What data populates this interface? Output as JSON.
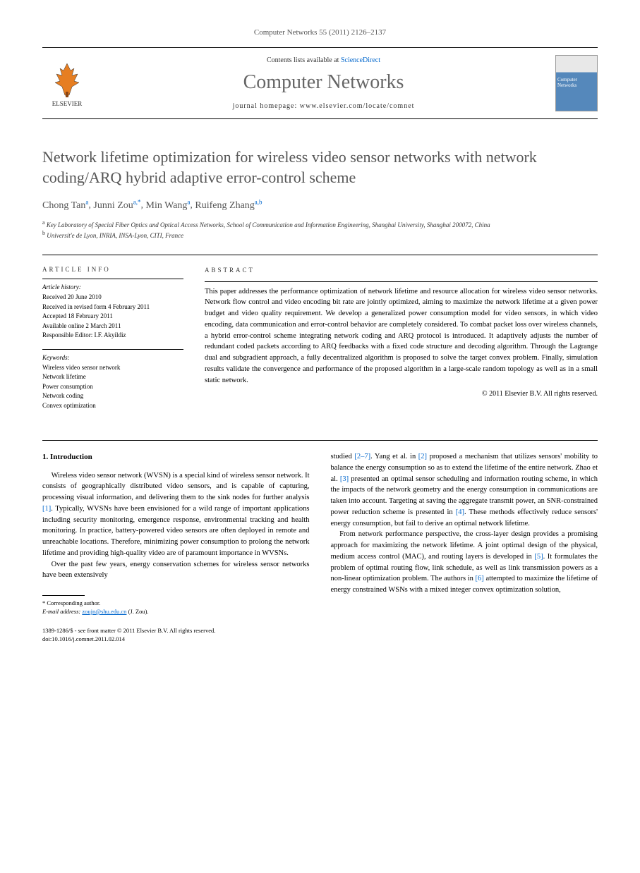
{
  "header": {
    "citation": "Computer Networks 55 (2011) 2126–2137"
  },
  "masthead": {
    "publisher": "ELSEVIER",
    "contents_prefix": "Contents lists available at ",
    "contents_link": "ScienceDirect",
    "journal": "Computer Networks",
    "homepage_label": "journal homepage: ",
    "homepage_url": "www.elsevier.com/locate/comnet",
    "cover_label": "Computer Networks"
  },
  "article": {
    "title": "Network lifetime optimization for wireless video sensor networks with network coding/ARQ hybrid adaptive error-control scheme",
    "authors_html": "Chong Tan",
    "authors": [
      {
        "name": "Chong Tan",
        "sup": "a"
      },
      {
        "name": "Junni Zou",
        "sup": "a,*"
      },
      {
        "name": "Min Wang",
        "sup": "a"
      },
      {
        "name": "Ruifeng Zhang",
        "sup": "a,b"
      }
    ],
    "affiliations": [
      {
        "sup": "a",
        "text": "Key Laboratory of Special Fiber Optics and Optical Access Networks, School of Communication and Information Engineering, Shanghai University, Shanghai 200072, China"
      },
      {
        "sup": "b",
        "text": "Universit'e de Lyon, INRIA, INSA-Lyon, CITI, France"
      }
    ]
  },
  "info": {
    "heading": "ARTICLE INFO",
    "history_label": "Article history:",
    "history": [
      "Received 20 June 2010",
      "Received in revised form 4 February 2011",
      "Accepted 18 February 2011",
      "Available online 2 March 2011",
      "Responsible Editor: I.F. Akyildiz"
    ],
    "keywords_label": "Keywords:",
    "keywords": [
      "Wireless video sensor network",
      "Network lifetime",
      "Power consumption",
      "Network coding",
      "Convex optimization"
    ]
  },
  "abstract": {
    "heading": "ABSTRACT",
    "text": "This paper addresses the performance optimization of network lifetime and resource allocation for wireless video sensor networks. Network flow control and video encoding bit rate are jointly optimized, aiming to maximize the network lifetime at a given power budget and video quality requirement. We develop a generalized power consumption model for video sensors, in which video encoding, data communication and error-control behavior are completely considered. To combat packet loss over wireless channels, a hybrid error-control scheme integrating network coding and ARQ protocol is introduced. It adaptively adjusts the number of redundant coded packets according to ARQ feedbacks with a fixed code structure and decoding algorithm. Through the Lagrange dual and subgradient approach, a fully decentralized algorithm is proposed to solve the target convex problem. Finally, simulation results validate the convergence and performance of the proposed algorithm in a large-scale random topology as well as in a small static network.",
    "copyright": "© 2011 Elsevier B.V. All rights reserved."
  },
  "body": {
    "section_heading": "1. Introduction",
    "col1_paras": [
      "Wireless video sensor network (WVSN) is a special kind of wireless sensor network. It consists of geographically distributed video sensors, and is capable of capturing, processing visual information, and delivering them to the sink nodes for further analysis [1]. Typically, WVSNs have been envisioned for a wild range of important applications including security monitoring, emergence response, environmental tracking and health monitoring. In practice, battery-powered video sensors are often deployed in remote and unreachable locations. Therefore, minimizing power consumption to prolong the network lifetime and providing high-quality video are of paramount importance in WVSNs.",
      "Over the past few years, energy conservation schemes for wireless sensor networks have been extensively"
    ],
    "col2_paras": [
      "studied [2–7]. Yang et al. in [2] proposed a mechanism that utilizes sensors' mobility to balance the energy consumption so as to extend the lifetime of the entire network. Zhao et al. [3] presented an optimal sensor scheduling and information routing scheme, in which the impacts of the network geometry and the energy consumption in communications are taken into account. Targeting at saving the aggregate transmit power, an SNR-constrained power reduction scheme is presented in [4]. These methods effectively reduce sensors' energy consumption, but fail to derive an optimal network lifetime.",
      "From network performance perspective, the cross-layer design provides a promising approach for maximizing the network lifetime. A joint optimal design of the physical, medium access control (MAC), and routing layers is developed in [5]. It formulates the problem of optimal routing flow, link schedule, as well as link transmission powers as a non-linear optimization problem. The authors in [6] attempted to maximize the lifetime of energy constrained WSNs with a mixed integer convex optimization solution,"
    ]
  },
  "footnote": {
    "corresponding": "* Corresponding author.",
    "email_label": "E-mail address: ",
    "email": "zoujn@shu.edu.cn",
    "email_suffix": " (J. Zou)."
  },
  "footer": {
    "line1": "1389-1286/$ - see front matter © 2011 Elsevier B.V. All rights reserved.",
    "doi": "doi:10.1016/j.comnet.2011.02.014"
  },
  "colors": {
    "link": "#0066cc",
    "text": "#000000",
    "title_gray": "#555555"
  }
}
